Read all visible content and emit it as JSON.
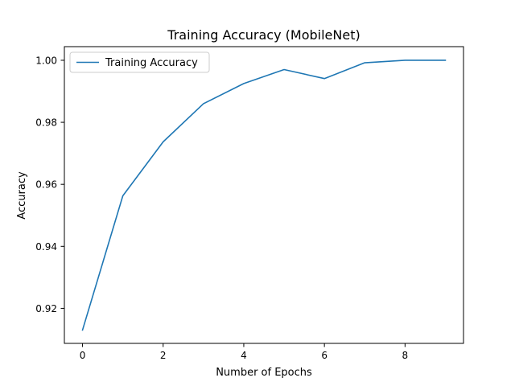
{
  "chart_data": {
    "type": "line",
    "title": "Training Accuracy (MobileNet)",
    "xlabel": "Number of Epochs",
    "ylabel": "Accuracy",
    "xlim": [
      -0.45,
      9.45
    ],
    "ylim": [
      0.9087,
      1.0044
    ],
    "xticks": [
      0,
      2,
      4,
      6,
      8
    ],
    "yticks": [
      0.92,
      0.94,
      0.96,
      0.98,
      1.0
    ],
    "ytick_labels": [
      "0.92",
      "0.94",
      "0.96",
      "0.98",
      "1.00"
    ],
    "legend_position": "upper-left",
    "grid": false,
    "series": [
      {
        "name": "Training Accuracy",
        "color": "#1f77b4",
        "x": [
          0,
          1,
          2,
          3,
          4,
          5,
          6,
          7,
          8,
          9
        ],
        "y": [
          0.913,
          0.9563,
          0.9737,
          0.986,
          0.9925,
          0.997,
          0.9941,
          0.9992,
          1.0,
          1.0
        ]
      }
    ]
  }
}
